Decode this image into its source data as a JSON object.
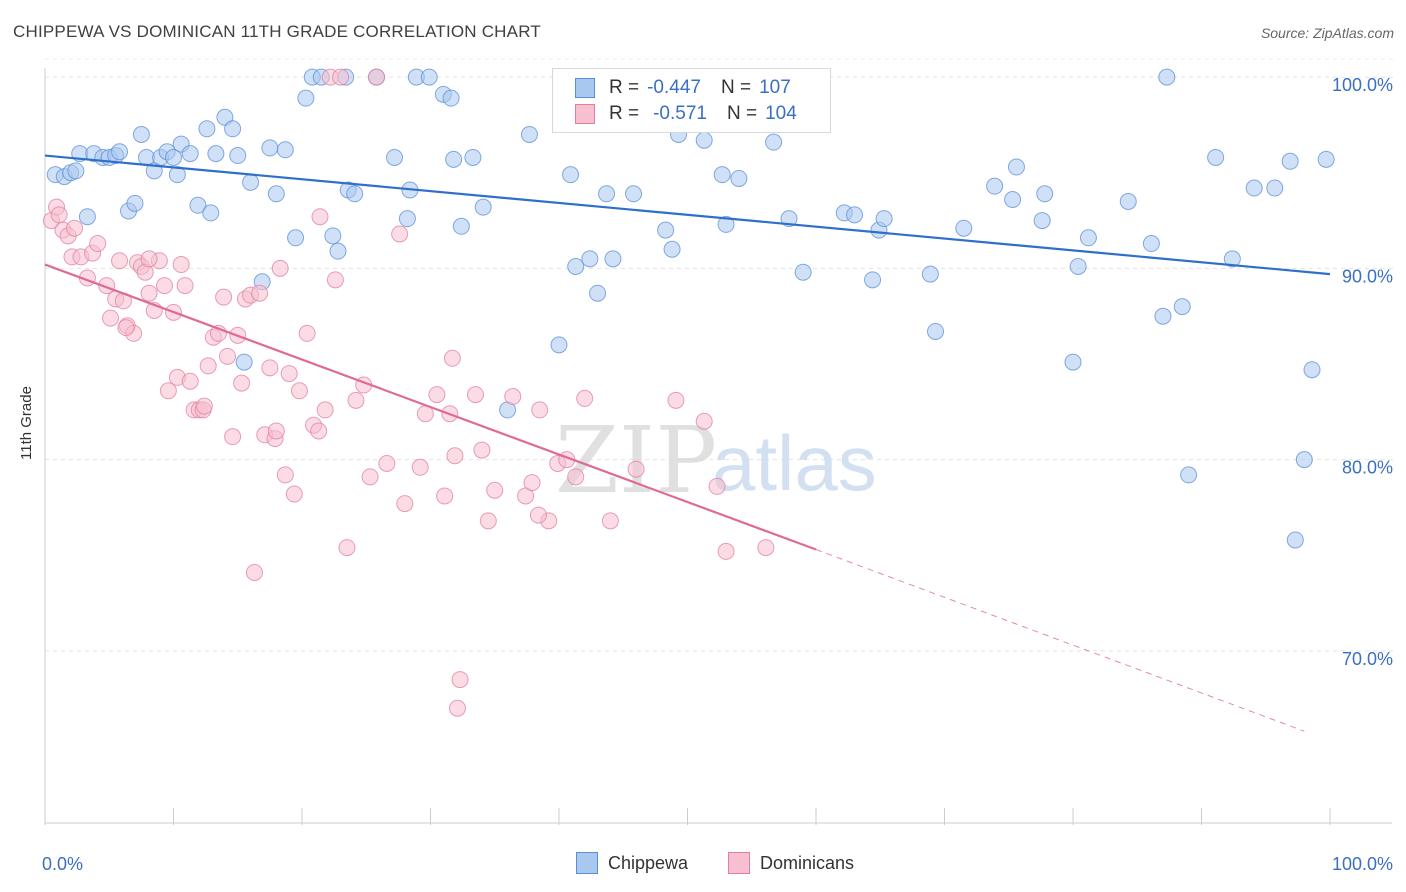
{
  "title": "CHIPPEWA VS DOMINICAN 11TH GRADE CORRELATION CHART",
  "source": "Source: ZipAtlas.com",
  "watermark": {
    "zip": "ZIP",
    "atlas": "atlas"
  },
  "stats": [
    {
      "r_label": "R =",
      "r_value": "-0.447",
      "n_label": "N =",
      "n_value": "107",
      "color": "#a9c8f0",
      "border": "#5a8fd6"
    },
    {
      "r_label": "R =",
      "r_value": "-0.571",
      "n_label": "N =",
      "n_value": "104",
      "color": "#f7bfd0",
      "border": "#e07fa0"
    }
  ],
  "legend": [
    {
      "label": "Chippewa",
      "color": "#a9c8f0",
      "border": "#5a8fd6"
    },
    {
      "label": "Dominicans",
      "color": "#f7bfd0",
      "border": "#e07fa0"
    }
  ],
  "chart_data": {
    "type": "scatter",
    "title": "CHIPPEWA VS DOMINICAN 11TH GRADE CORRELATION CHART",
    "xlabel": "",
    "ylabel": "11th Grade",
    "xlim": [
      0,
      100
    ],
    "ylim": [
      61,
      101
    ],
    "x_tick_labels": [
      "0.0%",
      "100.0%"
    ],
    "y_tick_labels": [
      "70.0%",
      "80.0%",
      "90.0%",
      "100.0%"
    ],
    "y_ticks": [
      70,
      80,
      90,
      100
    ],
    "grid": true,
    "series": [
      {
        "name": "Chippewa",
        "color": "#5a8fd6",
        "fill": "#a9c8f0",
        "trend": {
          "x": [
            0,
            100
          ],
          "y": [
            95.9,
            89.7
          ]
        },
        "points": [
          [
            0.8,
            94.9
          ],
          [
            1.5,
            94.8
          ],
          [
            2.0,
            95.0
          ],
          [
            2.4,
            95.1
          ],
          [
            2.7,
            96.0
          ],
          [
            3.3,
            92.7
          ],
          [
            3.8,
            96.0
          ],
          [
            4.5,
            95.8
          ],
          [
            5.0,
            95.8
          ],
          [
            5.5,
            95.9
          ],
          [
            5.8,
            96.1
          ],
          [
            6.5,
            93.0
          ],
          [
            7.0,
            93.4
          ],
          [
            7.5,
            97.0
          ],
          [
            7.9,
            95.8
          ],
          [
            8.5,
            95.1
          ],
          [
            9.0,
            95.8
          ],
          [
            9.5,
            96.1
          ],
          [
            10.0,
            95.8
          ],
          [
            10.3,
            94.9
          ],
          [
            10.6,
            96.5
          ],
          [
            11.3,
            96.0
          ],
          [
            11.9,
            93.3
          ],
          [
            12.6,
            97.3
          ],
          [
            12.9,
            92.9
          ],
          [
            13.3,
            96.0
          ],
          [
            14.0,
            97.9
          ],
          [
            14.6,
            97.3
          ],
          [
            15.0,
            95.9
          ],
          [
            15.5,
            85.1
          ],
          [
            16.0,
            94.5
          ],
          [
            16.9,
            89.3
          ],
          [
            17.5,
            96.3
          ],
          [
            18.0,
            93.9
          ],
          [
            18.7,
            96.2
          ],
          [
            19.5,
            91.6
          ],
          [
            20.3,
            98.9
          ],
          [
            20.8,
            100.0
          ],
          [
            21.5,
            100.0
          ],
          [
            22.4,
            91.7
          ],
          [
            22.8,
            90.9
          ],
          [
            23.4,
            100.0
          ],
          [
            23.6,
            94.1
          ],
          [
            24.1,
            93.9
          ],
          [
            25.8,
            100.0
          ],
          [
            27.2,
            95.8
          ],
          [
            28.2,
            92.6
          ],
          [
            28.4,
            94.1
          ],
          [
            28.9,
            100.0
          ],
          [
            29.9,
            100.0
          ],
          [
            31.0,
            99.1
          ],
          [
            31.6,
            98.9
          ],
          [
            31.8,
            95.7
          ],
          [
            32.4,
            92.2
          ],
          [
            33.3,
            95.8
          ],
          [
            34.1,
            93.2
          ],
          [
            36.0,
            82.6
          ],
          [
            37.7,
            97.0
          ],
          [
            40.0,
            86.0
          ],
          [
            40.9,
            94.9
          ],
          [
            41.3,
            90.1
          ],
          [
            42.4,
            90.5
          ],
          [
            43.0,
            88.7
          ],
          [
            43.7,
            93.9
          ],
          [
            44.2,
            90.5
          ],
          [
            45.8,
            93.9
          ],
          [
            48.3,
            92.0
          ],
          [
            48.8,
            91.0
          ],
          [
            49.3,
            97.0
          ],
          [
            51.3,
            96.7
          ],
          [
            52.7,
            94.9
          ],
          [
            53.0,
            92.3
          ],
          [
            54.0,
            94.7
          ],
          [
            56.7,
            96.6
          ],
          [
            57.9,
            92.6
          ],
          [
            59.0,
            89.8
          ],
          [
            62.2,
            92.9
          ],
          [
            63.0,
            92.8
          ],
          [
            64.4,
            89.4
          ],
          [
            64.9,
            92.0
          ],
          [
            65.3,
            92.6
          ],
          [
            68.9,
            89.7
          ],
          [
            69.3,
            86.7
          ],
          [
            71.5,
            92.1
          ],
          [
            73.9,
            94.3
          ],
          [
            75.3,
            93.6
          ],
          [
            75.6,
            95.3
          ],
          [
            77.6,
            92.5
          ],
          [
            77.8,
            93.9
          ],
          [
            80.0,
            85.1
          ],
          [
            80.4,
            90.1
          ],
          [
            81.2,
            91.6
          ],
          [
            84.3,
            93.5
          ],
          [
            86.1,
            91.3
          ],
          [
            87.0,
            87.5
          ],
          [
            87.3,
            100.0
          ],
          [
            88.5,
            88.0
          ],
          [
            89.0,
            79.2
          ],
          [
            91.1,
            95.8
          ],
          [
            92.4,
            90.5
          ],
          [
            94.1,
            94.2
          ],
          [
            95.7,
            94.2
          ],
          [
            96.9,
            95.6
          ],
          [
            97.3,
            75.8
          ],
          [
            98.0,
            80.0
          ],
          [
            98.6,
            84.7
          ],
          [
            99.7,
            95.7
          ]
        ]
      },
      {
        "name": "Dominicans",
        "color": "#e07fa0",
        "fill": "#f7bfd0",
        "trend": {
          "x": [
            0,
            60
          ],
          "y": [
            90.2,
            75.3
          ]
        },
        "trend_dashed": {
          "x": [
            60,
            98
          ],
          "y": [
            75.3,
            65.8
          ]
        },
        "points": [
          [
            0.5,
            92.5
          ],
          [
            0.9,
            93.2
          ],
          [
            1.1,
            92.8
          ],
          [
            1.4,
            92.0
          ],
          [
            1.8,
            91.7
          ],
          [
            2.1,
            90.6
          ],
          [
            2.3,
            92.1
          ],
          [
            2.8,
            90.6
          ],
          [
            3.3,
            89.5
          ],
          [
            3.7,
            90.8
          ],
          [
            4.1,
            91.3
          ],
          [
            4.8,
            89.1
          ],
          [
            5.1,
            87.4
          ],
          [
            5.5,
            88.4
          ],
          [
            5.8,
            90.4
          ],
          [
            6.1,
            88.3
          ],
          [
            6.4,
            87.0
          ],
          [
            6.9,
            86.6
          ],
          [
            7.2,
            90.3
          ],
          [
            7.5,
            90.1
          ],
          [
            7.8,
            89.8
          ],
          [
            8.1,
            88.7
          ],
          [
            8.5,
            87.8
          ],
          [
            8.9,
            90.4
          ],
          [
            9.3,
            89.1
          ],
          [
            9.6,
            83.6
          ],
          [
            10.0,
            87.7
          ],
          [
            10.3,
            84.3
          ],
          [
            10.6,
            90.2
          ],
          [
            10.9,
            89.1
          ],
          [
            11.3,
            84.1
          ],
          [
            11.6,
            82.6
          ],
          [
            12.0,
            82.6
          ],
          [
            12.3,
            82.6
          ],
          [
            12.7,
            84.9
          ],
          [
            13.1,
            86.4
          ],
          [
            13.5,
            86.6
          ],
          [
            13.9,
            88.5
          ],
          [
            14.2,
            85.4
          ],
          [
            14.6,
            81.2
          ],
          [
            15.0,
            86.5
          ],
          [
            15.3,
            84.0
          ],
          [
            15.6,
            88.4
          ],
          [
            16.0,
            88.6
          ],
          [
            16.3,
            74.1
          ],
          [
            16.7,
            88.7
          ],
          [
            17.1,
            81.3
          ],
          [
            17.5,
            84.8
          ],
          [
            17.9,
            81.1
          ],
          [
            18.3,
            90.0
          ],
          [
            18.7,
            79.2
          ],
          [
            19.0,
            84.5
          ],
          [
            19.4,
            78.2
          ],
          [
            19.8,
            83.6
          ],
          [
            20.4,
            86.6
          ],
          [
            20.9,
            81.8
          ],
          [
            21.3,
            81.5
          ],
          [
            21.8,
            82.6
          ],
          [
            22.2,
            100.0
          ],
          [
            22.6,
            89.4
          ],
          [
            23.0,
            100.0
          ],
          [
            23.5,
            75.4
          ],
          [
            24.2,
            83.1
          ],
          [
            24.8,
            83.9
          ],
          [
            25.3,
            79.1
          ],
          [
            25.8,
            100.0
          ],
          [
            26.6,
            79.8
          ],
          [
            27.6,
            91.8
          ],
          [
            28.0,
            77.7
          ],
          [
            29.2,
            79.6
          ],
          [
            29.6,
            82.4
          ],
          [
            30.5,
            83.4
          ],
          [
            31.1,
            78.1
          ],
          [
            31.5,
            82.4
          ],
          [
            31.9,
            80.2
          ],
          [
            32.3,
            68.5
          ],
          [
            32.1,
            67.0
          ],
          [
            31.7,
            85.3
          ],
          [
            33.5,
            83.4
          ],
          [
            34.0,
            80.5
          ],
          [
            34.5,
            76.8
          ],
          [
            35.0,
            78.4
          ],
          [
            36.4,
            83.3
          ],
          [
            37.4,
            78.1
          ],
          [
            37.9,
            78.8
          ],
          [
            38.5,
            82.6
          ],
          [
            39.2,
            76.8
          ],
          [
            39.9,
            79.8
          ],
          [
            40.6,
            80.0
          ],
          [
            41.3,
            79.1
          ],
          [
            42.0,
            83.2
          ],
          [
            44.0,
            76.8
          ],
          [
            46.0,
            79.5
          ],
          [
            49.1,
            83.1
          ],
          [
            51.3,
            82.0
          ],
          [
            52.3,
            78.6
          ],
          [
            53.0,
            75.2
          ],
          [
            56.1,
            75.4
          ],
          [
            38.4,
            77.1
          ],
          [
            21.4,
            92.7
          ],
          [
            18.0,
            81.5
          ],
          [
            12.4,
            82.8
          ],
          [
            8.1,
            90.5
          ],
          [
            6.3,
            86.9
          ]
        ]
      }
    ]
  }
}
